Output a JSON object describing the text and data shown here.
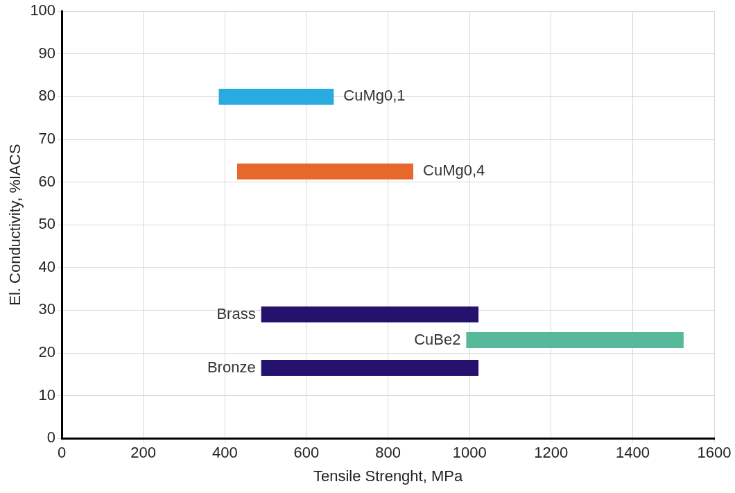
{
  "chart_data": {
    "type": "line",
    "xlabel": "Tensile Strenght, MPa",
    "ylabel": "El. Conductivity, %IACS",
    "xlim": [
      0,
      1600
    ],
    "xticks": [
      0,
      200,
      400,
      600,
      800,
      1000,
      1200,
      1400,
      1600
    ],
    "ylim": [
      0,
      100
    ],
    "yticks": [
      0,
      10,
      20,
      30,
      40,
      50,
      60,
      70,
      80,
      90,
      100
    ],
    "grid": true,
    "legend": false,
    "marker": "none",
    "line_style": "solid",
    "series": [
      {
        "name": "CuMg0,1",
        "color": "#29abe2",
        "x": [
          385,
          667
        ],
        "values": [
          80,
          80
        ]
      },
      {
        "name": "CuMg0,4",
        "color": "#e5692a",
        "x": [
          430,
          862
        ],
        "values": [
          62.5,
          62.5
        ]
      },
      {
        "name": "Brass",
        "color": "#24126e",
        "x": [
          489,
          1022
        ],
        "values": [
          29,
          29
        ]
      },
      {
        "name": "CuBe2",
        "color": "#55b99a",
        "x": [
          992,
          1525
        ],
        "values": [
          23,
          23
        ]
      },
      {
        "name": "Bronze",
        "color": "#24126e",
        "x": [
          489,
          1022
        ],
        "values": [
          16.5,
          16.5
        ]
      }
    ]
  }
}
